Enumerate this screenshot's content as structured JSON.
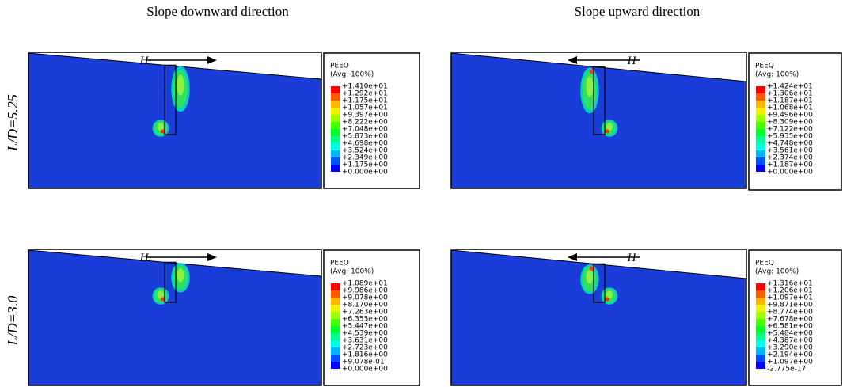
{
  "headings": [
    "Slope downward direction",
    "Slope upward direction"
  ],
  "rows": [
    "L/D=5.25",
    "L/D=3.0"
  ],
  "panels": [
    {
      "force_label": "H",
      "legend": {
        "title": "PEEQ",
        "subtitle": "(Avg: 100%)",
        "labels": [
          "+1.410e+01",
          "+1.292e+01",
          "+1.175e+01",
          "+1.057e+01",
          "+9.397e+00",
          "+8.222e+00",
          "+7.048e+00",
          "+5.873e+00",
          "+4.698e+00",
          "+3.524e+00",
          "+2.349e+00",
          "+1.175e+00",
          "+0.000e+00"
        ]
      }
    },
    {
      "force_label": "H",
      "legend": {
        "title": "PEEQ",
        "subtitle": "(Avg: 100%)",
        "labels": [
          "+1.424e+01",
          "+1.306e+01",
          "+1.187e+01",
          "+1.068e+01",
          "+9.496e+00",
          "+8.309e+00",
          "+7.122e+00",
          "+5.935e+00",
          "+4.748e+00",
          "+3.561e+00",
          "+2.374e+00",
          "+1.187e+00",
          "+0.000e+00"
        ]
      }
    },
    {
      "force_label": "H",
      "legend": {
        "title": "PEEQ",
        "subtitle": "(Avg: 100%)",
        "labels": [
          "+1.089e+01",
          "+9.986e+00",
          "+9.078e+00",
          "+8.170e+00",
          "+7.263e+00",
          "+6.355e+00",
          "+5.447e+00",
          "+4.539e+00",
          "+3.631e+00",
          "+2.723e+00",
          "+1.816e+00",
          "+9.078e-01",
          "+0.000e+00"
        ]
      }
    },
    {
      "force_label": "H",
      "legend": {
        "title": "PEEQ",
        "subtitle": "(Avg: 100%)",
        "labels": [
          "+1.316e+01",
          "+1.206e+01",
          "+1.097e+01",
          "+9.871e+00",
          "+8.774e+00",
          "+7.678e+00",
          "+6.581e+00",
          "+5.484e+00",
          "+4.387e+00",
          "+3.290e+00",
          "+2.194e+00",
          "+1.097e+00",
          "-2.775e-17"
        ]
      }
    }
  ]
}
